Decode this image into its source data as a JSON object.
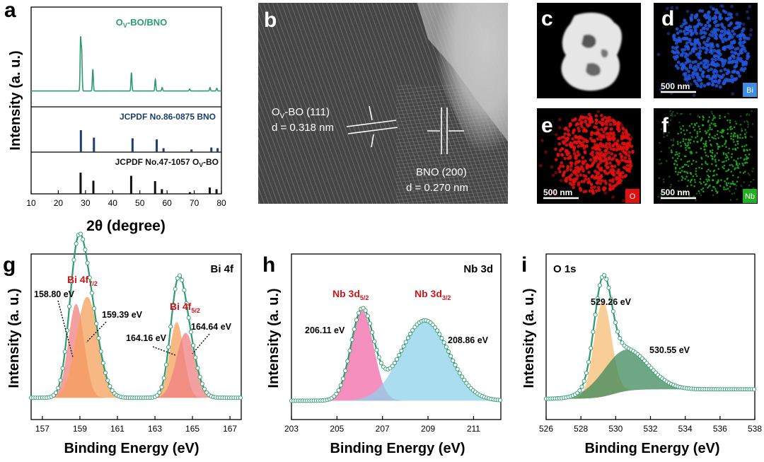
{
  "panel_letters": {
    "a": "a",
    "b": "b",
    "c": "c",
    "d": "d",
    "e": "e",
    "f": "f",
    "g": "g",
    "h": "h",
    "i": "i"
  },
  "colors": {
    "green": "#2c9b6e",
    "navy": "#1c3f6e",
    "black": "#111111",
    "red": "#d0151c",
    "bi_blue": "#2255d8",
    "o_red": "#e01010",
    "nb_green": "#22b022"
  },
  "chart_data": [
    {
      "id": "a",
      "type": "line",
      "title": "",
      "xlabel": "2θ (degree)",
      "ylabel": "Intensity (a. u.)",
      "xlim": [
        10,
        80
      ],
      "xticks": [
        "10",
        "20",
        "30",
        "40",
        "50",
        "60",
        "70",
        "80"
      ],
      "series": [
        {
          "name": "OV-BO/BNO",
          "label_main": "O",
          "label_sub": "V",
          "label_rest": "-BO/BNO",
          "color": "#2c9b6e",
          "peaks": [
            [
              28.2,
              0.75
            ],
            [
              28.6,
              0.55
            ],
            [
              32.7,
              0.32
            ],
            [
              46.9,
              0.27
            ],
            [
              55.7,
              0.17
            ],
            [
              58.2,
              0.05
            ],
            [
              68.3,
              0.03
            ],
            [
              75.8,
              0.05
            ],
            [
              78.3,
              0.04
            ]
          ]
        },
        {
          "name": "JCPDF No.86-0875 BNO",
          "label": "JCPDF No.86-0875 BNO",
          "color": "#1c3f6e",
          "sticks": [
            [
              28.3,
              1.0
            ],
            [
              33.1,
              0.66
            ],
            [
              47.3,
              0.63
            ],
            [
              56.2,
              0.58
            ],
            [
              58.7,
              0.18
            ],
            [
              69.0,
              0.12
            ],
            [
              76.3,
              0.21
            ],
            [
              78.6,
              0.18
            ]
          ]
        },
        {
          "name": "JCPDF No.47-1057 OV-BO",
          "label_main": "JCPDF No.47-1057 O",
          "label_sub": "V",
          "label_rest": "-BO",
          "color": "#111111",
          "sticks": [
            [
              28.2,
              1.0
            ],
            [
              32.9,
              0.62
            ],
            [
              46.8,
              0.85
            ],
            [
              55.6,
              0.6
            ],
            [
              58.1,
              0.22
            ],
            [
              68.4,
              0.08
            ],
            [
              75.7,
              0.3
            ],
            [
              78.2,
              0.22
            ]
          ]
        }
      ]
    },
    {
      "id": "g",
      "type": "line",
      "title": "Bi 4f",
      "xlabel": "Binding Energy (eV)",
      "ylabel": "Intensity (a. u.)",
      "xlim": [
        156.4,
        167.6
      ],
      "xticks": [
        157,
        159,
        161,
        163,
        165,
        167
      ],
      "baseline": 0.05,
      "components": [
        {
          "center": 158.8,
          "sigma": 0.42,
          "amp": 0.52,
          "color": "#f08080"
        },
        {
          "center": 159.39,
          "sigma": 0.58,
          "amp": 0.56,
          "color": "#f5a05a"
        },
        {
          "center": 164.16,
          "sigma": 0.38,
          "amp": 0.42,
          "color": "#f5a05a"
        },
        {
          "center": 164.64,
          "sigma": 0.5,
          "amp": 0.36,
          "color": "#f08080"
        }
      ],
      "labels": {
        "doublet1_main": "Bi 4f",
        "doublet1_sub": "7/2",
        "doublet2_main": "Bi 4f",
        "doublet2_sub": "5/2"
      },
      "annotations": [
        "158.80 eV",
        "159.39 eV",
        "164.16 eV",
        "164.64 eV"
      ]
    },
    {
      "id": "h",
      "type": "line",
      "title": "Nb 3d",
      "xlabel": "Binding Energy (eV)",
      "ylabel": "Intensity (a. u.)",
      "xlim": [
        203,
        212.2
      ],
      "xticks": [
        203,
        205,
        207,
        209,
        211
      ],
      "baseline": 0.05,
      "components": [
        {
          "center": 206.11,
          "sigma": 0.5,
          "amp": 0.74,
          "color": "#f06aa8"
        },
        {
          "center": 208.86,
          "sigma": 1.05,
          "amp": 0.66,
          "color": "#8fd2ec"
        }
      ],
      "labels": {
        "p1_main": "Nb 3d",
        "p1_sub": "5/2",
        "p2_main": "Nb 3d",
        "p2_sub": "3/2"
      },
      "annotations": [
        "206.11 eV",
        "208.86 eV"
      ]
    },
    {
      "id": "i",
      "type": "line",
      "title": "O 1s",
      "xlabel": "Binding Energy (eV)",
      "ylabel": "Intensity (a. u.)",
      "xlim": [
        526,
        538
      ],
      "xticks": [
        526,
        528,
        530,
        532,
        534,
        536,
        538
      ],
      "baseline": 0.05,
      "tail": 0.06,
      "components": [
        {
          "center": 529.26,
          "sigma": 0.5,
          "amp": 0.6,
          "color": "#f5be73"
        },
        {
          "center": 530.55,
          "sigma": 1.3,
          "amp": 0.26,
          "color": "#3d8a5a"
        }
      ],
      "annotations": [
        "529.26 eV",
        "530.55 eV"
      ]
    }
  ],
  "panel_b": {
    "ovbo_label_main": "O",
    "ovbo_label_sub": "V",
    "ovbo_label_rest": "-BO (111)",
    "ovbo_d": "d = 0.318 nm",
    "bno_label": "BNO (200)",
    "bno_d": "d = 0.270 nm"
  },
  "mapping": {
    "scalebar_d": "500 nm",
    "scalebar_e": "500 nm",
    "scalebar_f": "500 nm",
    "badge_d": "Bi",
    "badge_e": "O",
    "badge_f": "Nb"
  }
}
